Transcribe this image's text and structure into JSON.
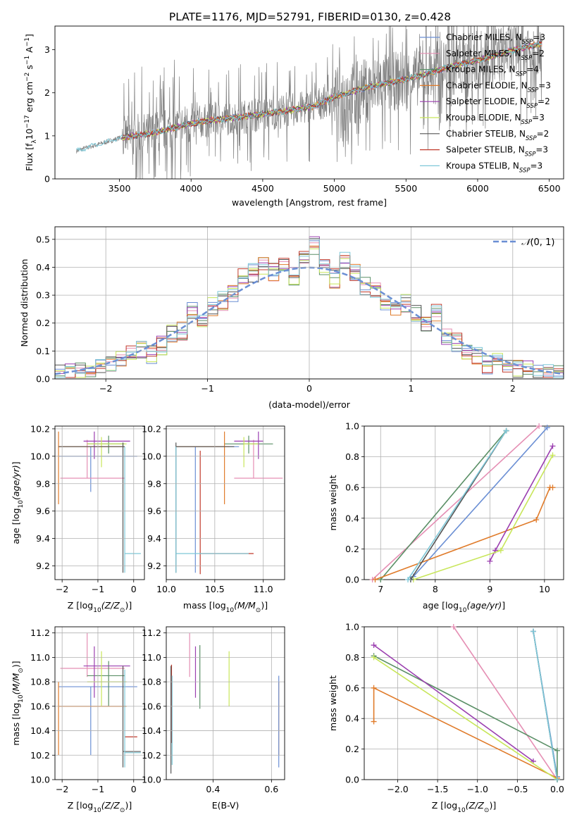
{
  "figure_title": "PLATE=1176, MJD=52791, FIBERID=0130, z=0.428",
  "colors": {
    "Chabrier MILES": "#6b8fd4",
    "Salpeter MILES": "#e58fb4",
    "Kroupa MILES": "#5a8f66",
    "Chabrier ELODIE": "#e07b2a",
    "Salpeter ELODIE": "#9b3fb0",
    "Kroupa ELODIE": "#c8e65a",
    "Chabrier STELIB": "#555555",
    "Salpeter STELIB": "#c0392b",
    "Kroupa STELIB": "#7ec8d8",
    "spectrum": "#808080",
    "normal": "#6b8fd4"
  },
  "chart_data": [
    {
      "type": "line",
      "id": "spectrum",
      "xlabel": "wavelength [Angstrom, rest frame]",
      "ylabel": "Flux [f",
      "xlim": [
        3050,
        6600
      ],
      "ylim": [
        0,
        3.55
      ],
      "xticks": [
        3500,
        4000,
        4500,
        5000,
        5500,
        6000,
        6500
      ],
      "yticks": [
        0,
        1,
        2,
        3
      ],
      "legend_position": "top-right",
      "legend": [
        {
          "name": "Chabrier MILES",
          "n": "3"
        },
        {
          "name": "Salpeter MILES",
          "n": "2"
        },
        {
          "name": "Kroupa MILES",
          "n": "4"
        },
        {
          "name": "Chabrier ELODIE",
          "n": "3"
        },
        {
          "name": "Salpeter ELODIE",
          "n": "2"
        },
        {
          "name": "Kroupa ELODIE",
          "n": "3"
        },
        {
          "name": "Chabrier STELIB",
          "n": "2"
        },
        {
          "name": "Salpeter STELIB",
          "n": "3"
        },
        {
          "name": "Kroupa STELIB",
          "n": "3"
        }
      ],
      "continuum_x": [
        3200,
        3500,
        3700,
        3900,
        4100,
        4300,
        4500,
        4700,
        4850,
        5000,
        5200,
        5400,
        5600,
        5800,
        6000,
        6200,
        6450
      ],
      "continuum_y": [
        0.65,
        0.95,
        1.05,
        1.2,
        1.35,
        1.42,
        1.5,
        1.6,
        1.68,
        1.9,
        2.1,
        2.25,
        2.4,
        2.6,
        2.75,
        2.95,
        3.15
      ]
    },
    {
      "type": "histogram",
      "id": "residuals",
      "xlabel": "(data-model)/error",
      "ylabel": "Normed distribution",
      "xlim": [
        -2.5,
        2.5
      ],
      "ylim": [
        0,
        0.545
      ],
      "xticks": [
        -2,
        -1,
        0,
        1,
        2
      ],
      "yticks": [
        0.0,
        0.1,
        0.2,
        0.3,
        0.4,
        0.5
      ],
      "legend": "N(0,1)",
      "legend_position": "top-right",
      "bin_width": 0.1,
      "bin_start": -2.5,
      "reference_values": [
        0.015,
        0.02,
        0.025,
        0.03,
        0.04,
        0.05,
        0.07,
        0.09,
        0.1,
        0.09,
        0.12,
        0.16,
        0.17,
        0.25,
        0.22,
        0.26,
        0.28,
        0.3,
        0.37,
        0.38,
        0.4,
        0.38,
        0.42,
        0.37,
        0.44,
        0.48,
        0.4,
        0.36,
        0.42,
        0.38,
        0.33,
        0.32,
        0.28,
        0.25,
        0.27,
        0.23,
        0.2,
        0.24,
        0.15,
        0.13,
        0.1,
        0.08,
        0.05,
        0.07,
        0.04,
        0.04,
        0.03,
        0.02,
        0.02,
        0.015
      ]
    },
    {
      "type": "errorbar",
      "id": "age-vs-Z",
      "xlabel": "Z [log",
      "ylabel": "age  [log",
      "xlim": [
        -2.2,
        0.3
      ],
      "ylim": [
        9.1,
        10.22
      ],
      "xticks": [
        -2,
        -1,
        0
      ],
      "yticks": [
        9.2,
        9.4,
        9.6,
        9.8,
        10.0,
        10.2
      ],
      "points": [
        {
          "s": "Chabrier MILES",
          "x": -1.2,
          "y": 10.0,
          "xl": -2.1,
          "xh": 0.1,
          "yl": 9.74,
          "yh": 10.07
        },
        {
          "s": "Salpeter MILES",
          "x": -1.3,
          "y": 9.84,
          "xl": -2.05,
          "xh": -0.25,
          "yl": 9.84,
          "yh": 10.12
        },
        {
          "s": "Kroupa MILES",
          "x": -0.7,
          "y": 10.09,
          "xl": -1.3,
          "xh": -0.25,
          "yl": 10.02,
          "yh": 10.15
        },
        {
          "s": "Chabrier ELODIE",
          "x": -2.1,
          "y": 10.07,
          "xl": -2.1,
          "xh": -0.25,
          "yl": 9.65,
          "yh": 10.18
        },
        {
          "s": "Salpeter ELODIE",
          "x": -1.1,
          "y": 10.11,
          "xl": -1.4,
          "xh": -0.1,
          "yl": 9.98,
          "yh": 10.18
        },
        {
          "s": "Kroupa ELODIE",
          "x": -0.9,
          "y": 10.09,
          "xl": -1.3,
          "xh": -0.2,
          "yl": 9.92,
          "yh": 10.14
        },
        {
          "s": "Chabrier STELIB",
          "x": -0.3,
          "y": 10.07,
          "xl": -2.1,
          "xh": -0.25,
          "yl": 9.15,
          "yh": 10.1
        },
        {
          "s": "Kroupa STELIB",
          "x": -0.25,
          "y": 9.29,
          "xl": -0.25,
          "xh": 0.2,
          "yl": 9.15,
          "yh": 10.07
        }
      ]
    },
    {
      "type": "errorbar",
      "id": "age-vs-mass",
      "xlabel": "mass [log",
      "xlim": [
        10.0,
        11.22
      ],
      "ylim": [
        9.1,
        10.22
      ],
      "xticks": [
        10.0,
        10.5,
        11.0
      ],
      "yticks": [
        9.2,
        9.4,
        9.6,
        9.8,
        10.0,
        10.2
      ],
      "points": [
        {
          "s": "Chabrier MILES",
          "x": 10.3,
          "y": 10.07,
          "xl": 10.1,
          "xh": 10.75,
          "yl": 9.15,
          "yh": 10.07
        },
        {
          "s": "Salpeter MILES",
          "x": 10.9,
          "y": 9.84,
          "xl": 10.7,
          "xh": 11.2,
          "yl": 9.84,
          "yh": 10.12
        },
        {
          "s": "Kroupa MILES",
          "x": 10.85,
          "y": 10.09,
          "xl": 10.6,
          "xh": 11.1,
          "yl": 10.02,
          "yh": 10.15
        },
        {
          "s": "Chabrier ELODIE",
          "x": 10.6,
          "y": 10.07,
          "xl": 10.1,
          "xh": 10.65,
          "yl": 9.65,
          "yh": 10.18
        },
        {
          "s": "Salpeter ELODIE",
          "x": 10.95,
          "y": 10.11,
          "xl": 10.7,
          "xh": 11.0,
          "yl": 9.98,
          "yh": 10.18
        },
        {
          "s": "Kroupa ELODIE",
          "x": 10.8,
          "y": 10.09,
          "xl": 10.8,
          "xh": 10.95,
          "yl": 9.92,
          "yh": 10.14
        },
        {
          "s": "Chabrier STELIB",
          "x": 10.1,
          "y": 10.07,
          "xl": 10.1,
          "xh": 10.7,
          "yl": 9.15,
          "yh": 10.1
        },
        {
          "s": "Salpeter STELIB",
          "x": 10.35,
          "y": 9.29,
          "xl": 10.35,
          "xh": 10.9,
          "yl": 9.14,
          "yh": 10.04
        },
        {
          "s": "Kroupa STELIB",
          "x": 10.1,
          "y": 9.29,
          "xl": 10.1,
          "xh": 10.85,
          "yl": 9.15,
          "yh": 10.07
        }
      ]
    },
    {
      "type": "line",
      "id": "massweight-vs-age",
      "xlabel": "age  [log",
      "ylabel": "mass weight",
      "xlim": [
        6.7,
        10.35
      ],
      "ylim": [
        0,
        1.0
      ],
      "xticks": [
        7,
        8,
        9,
        10
      ],
      "yticks": [
        0.0,
        0.2,
        0.4,
        0.6,
        0.8,
        1.0
      ],
      "series": [
        {
          "s": "Chabrier MILES",
          "x": [
            7.55,
            7.6,
            10.05
          ],
          "y": [
            0.0,
            0.02,
            0.99
          ]
        },
        {
          "s": "Salpeter MILES",
          "x": [
            6.85,
            9.9
          ],
          "y": [
            0.0,
            1.0
          ]
        },
        {
          "s": "Kroupa MILES",
          "x": [
            7.0,
            9.3
          ],
          "y": [
            0.0,
            0.97
          ]
        },
        {
          "s": "Chabrier ELODIE",
          "x": [
            6.9,
            9.85,
            10.1,
            10.15
          ],
          "y": [
            0.0,
            0.39,
            0.6,
            0.6
          ]
        },
        {
          "s": "Salpeter ELODIE",
          "x": [
            9.0,
            9.1,
            10.15
          ],
          "y": [
            0.12,
            0.19,
            0.87
          ]
        },
        {
          "s": "Kroupa ELODIE",
          "x": [
            7.6,
            9.2,
            10.15
          ],
          "y": [
            0.0,
            0.19,
            0.81
          ]
        },
        {
          "s": "Chabrier STELIB",
          "x": [
            7.55,
            9.3
          ],
          "y": [
            0.0,
            0.97
          ]
        },
        {
          "s": "Kroupa STELIB",
          "x": [
            7.5,
            9.3
          ],
          "y": [
            0.0,
            0.97
          ]
        }
      ]
    },
    {
      "type": "errorbar",
      "id": "mass-vs-Z",
      "xlabel": "Z [log",
      "ylabel": "mass [log",
      "xlim": [
        -2.2,
        0.3
      ],
      "ylim": [
        10.0,
        11.25
      ],
      "xticks": [
        -2,
        -1,
        0
      ],
      "yticks": [
        10.0,
        10.2,
        10.4,
        10.6,
        10.8,
        11.0,
        11.2
      ],
      "points": [
        {
          "s": "Chabrier MILES",
          "x": -1.2,
          "y": 10.76,
          "xl": -2.1,
          "xh": 0.1,
          "yl": 10.2,
          "yh": 10.76
        },
        {
          "s": "Salpeter MILES",
          "x": -1.3,
          "y": 10.91,
          "xl": -2.05,
          "xh": -0.25,
          "yl": 10.84,
          "yh": 11.2
        },
        {
          "s": "Kroupa MILES",
          "x": -0.7,
          "y": 10.85,
          "xl": -1.3,
          "xh": -0.25,
          "yl": 10.6,
          "yh": 10.97
        },
        {
          "s": "Chabrier ELODIE",
          "x": -2.1,
          "y": 10.6,
          "xl": -2.1,
          "xh": -0.2,
          "yl": 10.2,
          "yh": 10.8
        },
        {
          "s": "Salpeter ELODIE",
          "x": -1.1,
          "y": 10.93,
          "xl": -1.4,
          "xh": -0.1,
          "yl": 10.67,
          "yh": 11.09
        },
        {
          "s": "Kroupa ELODIE",
          "x": -0.9,
          "y": 10.8,
          "xl": -1.3,
          "xh": -0.2,
          "yl": 10.6,
          "yh": 11.05
        },
        {
          "s": "Chabrier STELIB",
          "x": -0.3,
          "y": 10.23,
          "xl": -0.3,
          "xh": 0.2,
          "yl": 10.1,
          "yh": 10.93
        },
        {
          "s": "Salpeter STELIB",
          "x": -0.25,
          "y": 10.35,
          "xl": -0.25,
          "xh": 0.1,
          "yl": 10.35,
          "yh": 10.35
        },
        {
          "s": "Kroupa STELIB",
          "x": -0.25,
          "y": 10.22,
          "xl": -0.25,
          "xh": 0.2,
          "yl": 10.1,
          "yh": 10.9
        }
      ]
    },
    {
      "type": "errorbar",
      "id": "mass-vs-EBV",
      "xlabel": "E(B-V)",
      "xlim": [
        0.24,
        0.645
      ],
      "ylim": [
        10.0,
        11.25
      ],
      "xticks": [
        0.4,
        0.6
      ],
      "yticks": [
        10.0,
        10.2,
        10.4,
        10.6,
        10.8,
        11.0,
        11.2
      ],
      "points": [
        {
          "s": "Salpeter MILES",
          "yl": 10.84,
          "yh": 11.2,
          "x": 0.32
        },
        {
          "s": "Kroupa MILES",
          "yl": 10.58,
          "yh": 11.1,
          "x": 0.355
        },
        {
          "s": "Salpeter ELODIE",
          "yl": 10.67,
          "yh": 11.09,
          "x": 0.34
        },
        {
          "s": "Kroupa ELODIE",
          "yl": 10.6,
          "yh": 11.05,
          "x": 0.455
        },
        {
          "s": "Chabrier ELODIE",
          "yl": 10.2,
          "yh": 10.8,
          "x": 0.625
        },
        {
          "s": "Chabrier MILES",
          "yl": 10.1,
          "yh": 10.85,
          "x": 0.625
        },
        {
          "s": "Salpeter STELIB",
          "yl": 10.3,
          "yh": 10.94,
          "x": 0.258
        },
        {
          "s": "Chabrier STELIB",
          "yl": 10.05,
          "yh": 10.93,
          "x": 0.256
        },
        {
          "s": "Kroupa STELIB",
          "yl": 10.12,
          "yh": 10.85,
          "x": 0.26
        }
      ]
    },
    {
      "type": "line",
      "id": "massweight-vs-Z",
      "xlabel": "Z [log",
      "ylabel": "mass weight",
      "xlim": [
        -2.42,
        0.08
      ],
      "ylim": [
        0,
        1.0
      ],
      "xticks": [
        -2.0,
        -1.5,
        -1.0,
        -0.5,
        0.0
      ],
      "yticks": [
        0.0,
        0.2,
        0.4,
        0.6,
        0.8,
        1.0
      ],
      "series": [
        {
          "s": "Chabrier MILES",
          "x": [
            -0.3,
            0.0,
            0.0
          ],
          "y": [
            0.97,
            0.02,
            0.0
          ]
        },
        {
          "s": "Salpeter MILES",
          "x": [
            -1.3,
            0.0
          ],
          "y": [
            1.0,
            0.0
          ]
        },
        {
          "s": "Kroupa MILES",
          "x": [
            -2.3,
            0.0,
            0.0
          ],
          "y": [
            0.81,
            0.19,
            0.0
          ]
        },
        {
          "s": "Chabrier ELODIE",
          "x": [
            -2.3,
            -2.3,
            0.0,
            0.0
          ],
          "y": [
            0.38,
            0.6,
            0.01,
            0.0
          ]
        },
        {
          "s": "Salpeter ELODIE",
          "x": [
            -2.3,
            -0.3
          ],
          "y": [
            0.88,
            0.12
          ]
        },
        {
          "s": "Kroupa ELODIE",
          "x": [
            -2.3,
            0.0
          ],
          "y": [
            0.8,
            0.0
          ]
        },
        {
          "s": "Chabrier STELIB",
          "x": [
            -0.3,
            0.0
          ],
          "y": [
            0.97,
            0.0
          ]
        },
        {
          "s": "Kroupa STELIB",
          "x": [
            -0.3,
            0.0
          ],
          "y": [
            0.97,
            0.0
          ]
        }
      ]
    }
  ]
}
